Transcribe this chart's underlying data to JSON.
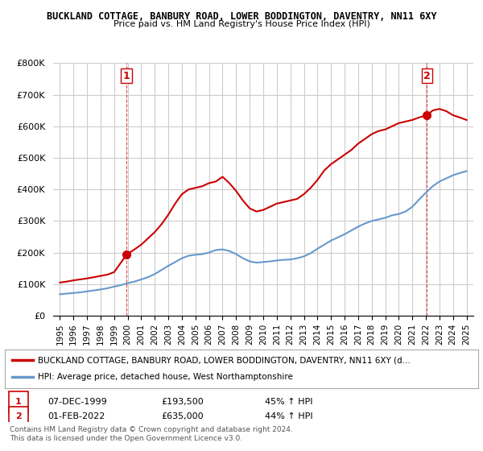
{
  "title1": "BUCKLAND COTTAGE, BANBURY ROAD, LOWER BODDINGTON, DAVENTRY, NN11 6XY",
  "title2": "Price paid vs. HM Land Registry's House Price Index (HPI)",
  "ylabel": "",
  "background_color": "#ffffff",
  "grid_color": "#cccccc",
  "red_color": "#cc0000",
  "blue_color": "#6699cc",
  "point1_x": 1999.92,
  "point1_y": 193500,
  "point1_label": "1",
  "point1_date": "07-DEC-1999",
  "point1_price": "£193,500",
  "point1_hpi": "45% ↑ HPI",
  "point2_x": 2022.08,
  "point2_y": 635000,
  "point2_label": "2",
  "point2_date": "01-FEB-2022",
  "point2_price": "£635,000",
  "point2_hpi": "44% ↑ HPI",
  "legend_line1": "BUCKLAND COTTAGE, BANBURY ROAD, LOWER BODDINGTON, DAVENTRY, NN11 6XY (d…",
  "legend_line2": "HPI: Average price, detached house, West Northamptonshire",
  "footer1": "Contains HM Land Registry data © Crown copyright and database right 2024.",
  "footer2": "This data is licensed under the Open Government Licence v3.0.",
  "ylim": [
    0,
    800000
  ],
  "xlim": [
    1994.5,
    2025.5
  ],
  "yticks": [
    0,
    100000,
    200000,
    300000,
    400000,
    500000,
    600000,
    700000,
    800000
  ],
  "ytick_labels": [
    "£0",
    "£100K",
    "£200K",
    "£300K",
    "£400K",
    "£500K",
    "£600K",
    "£700K",
    "£800K"
  ],
  "xticks": [
    1995,
    1996,
    1997,
    1998,
    1999,
    2000,
    2001,
    2002,
    2003,
    2004,
    2005,
    2006,
    2007,
    2008,
    2009,
    2010,
    2011,
    2012,
    2013,
    2014,
    2015,
    2016,
    2017,
    2018,
    2019,
    2020,
    2021,
    2022,
    2023,
    2024,
    2025
  ],
  "red_x": [
    1995.0,
    1995.5,
    1996.0,
    1996.5,
    1997.0,
    1997.5,
    1998.0,
    1998.5,
    1999.0,
    1999.92,
    2000.5,
    2001.0,
    2001.5,
    2002.0,
    2002.5,
    2003.0,
    2003.5,
    2004.0,
    2004.5,
    2005.0,
    2005.5,
    2006.0,
    2006.5,
    2007.0,
    2007.5,
    2008.0,
    2008.5,
    2009.0,
    2009.5,
    2010.0,
    2010.5,
    2011.0,
    2011.5,
    2012.0,
    2012.5,
    2013.0,
    2013.5,
    2014.0,
    2014.5,
    2015.0,
    2015.5,
    2016.0,
    2016.5,
    2017.0,
    2017.5,
    2018.0,
    2018.5,
    2019.0,
    2019.5,
    2020.0,
    2020.5,
    2021.0,
    2021.5,
    2022.08,
    2022.5,
    2023.0,
    2023.5,
    2024.0,
    2024.5,
    2025.0
  ],
  "red_y": [
    105000,
    108000,
    112000,
    115000,
    118000,
    122000,
    126000,
    130000,
    138000,
    193500,
    210000,
    225000,
    245000,
    265000,
    290000,
    320000,
    355000,
    385000,
    400000,
    405000,
    410000,
    420000,
    425000,
    440000,
    420000,
    395000,
    365000,
    340000,
    330000,
    335000,
    345000,
    355000,
    360000,
    365000,
    370000,
    385000,
    405000,
    430000,
    460000,
    480000,
    495000,
    510000,
    525000,
    545000,
    560000,
    575000,
    585000,
    590000,
    600000,
    610000,
    615000,
    620000,
    628000,
    635000,
    650000,
    655000,
    648000,
    635000,
    628000,
    620000
  ],
  "blue_x": [
    1995.0,
    1995.5,
    1996.0,
    1996.5,
    1997.0,
    1997.5,
    1998.0,
    1998.5,
    1999.0,
    1999.5,
    2000.0,
    2000.5,
    2001.0,
    2001.5,
    2002.0,
    2002.5,
    2003.0,
    2003.5,
    2004.0,
    2004.5,
    2005.0,
    2005.5,
    2006.0,
    2006.5,
    2007.0,
    2007.5,
    2008.0,
    2008.5,
    2009.0,
    2009.5,
    2010.0,
    2010.5,
    2011.0,
    2011.5,
    2012.0,
    2012.5,
    2013.0,
    2013.5,
    2014.0,
    2014.5,
    2015.0,
    2015.5,
    2016.0,
    2016.5,
    2017.0,
    2017.5,
    2018.0,
    2018.5,
    2019.0,
    2019.5,
    2020.0,
    2020.5,
    2021.0,
    2021.5,
    2022.0,
    2022.5,
    2023.0,
    2023.5,
    2024.0,
    2024.5,
    2025.0
  ],
  "blue_y": [
    68000,
    70000,
    72000,
    74000,
    77000,
    80000,
    83000,
    87000,
    92000,
    97000,
    103000,
    108000,
    115000,
    122000,
    132000,
    145000,
    158000,
    170000,
    182000,
    190000,
    193000,
    195000,
    200000,
    208000,
    210000,
    205000,
    195000,
    182000,
    172000,
    168000,
    170000,
    172000,
    175000,
    177000,
    178000,
    182000,
    188000,
    198000,
    212000,
    225000,
    238000,
    248000,
    258000,
    270000,
    282000,
    292000,
    300000,
    305000,
    310000,
    318000,
    322000,
    330000,
    345000,
    368000,
    390000,
    410000,
    425000,
    435000,
    445000,
    452000,
    458000
  ]
}
